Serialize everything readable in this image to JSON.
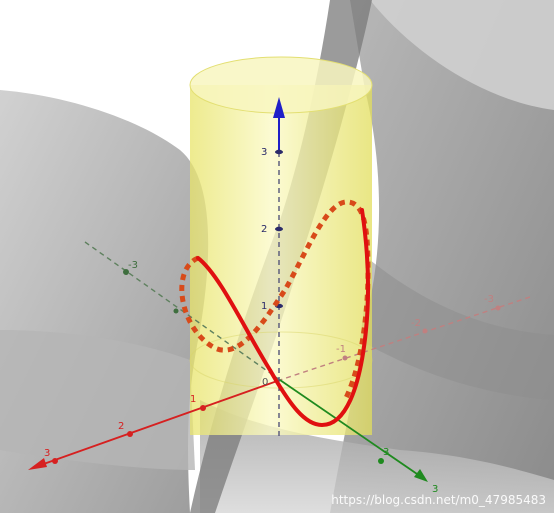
{
  "scene": {
    "axes": {
      "x": {
        "color": "#d62020",
        "tick_labels": [
          "3",
          "2",
          "1",
          "-1",
          "-2",
          "-3"
        ]
      },
      "y": {
        "color": "#1f8a1f",
        "tick_labels": [
          "3",
          "3",
          "-3"
        ]
      },
      "z": {
        "color": "#1f1fc8",
        "tick_labels": [
          "3",
          "2",
          "1",
          "0"
        ]
      }
    },
    "surfaces": {
      "cylinder_color": "#f2f08a",
      "surface_color": "#8f8f8f"
    },
    "curves": {
      "solid_color": "#e01010",
      "dashed_color": "#d84a1a"
    }
  },
  "watermark": "https://blog.csdn.net/m0_47985483"
}
